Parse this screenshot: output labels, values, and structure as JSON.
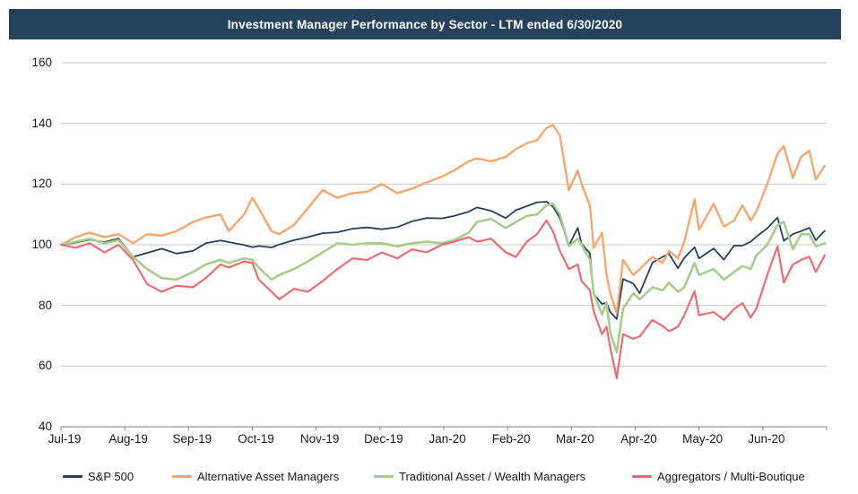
{
  "title": "Investment Manager Performance by Sector - LTM ended 6/30/2020",
  "colors": {
    "header_bg": "#24425C",
    "grid": "#C9C9C9",
    "axis": "#808080",
    "text": "#1A1A1A",
    "background": "#FFFFFF"
  },
  "legend": [
    {
      "label": "S&P 500",
      "color": "#24425C"
    },
    {
      "label": "Alternative Asset Managers",
      "color": "#F9A369"
    },
    {
      "label": "Traditional Asset / Wealth Managers",
      "color": "#A6CE8B"
    },
    {
      "label": "Aggregators / Multi-Boutique",
      "color": "#F3656D"
    }
  ],
  "chart_data": {
    "type": "line",
    "title": "Investment Manager Performance by Sector - LTM ended 6/30/2020",
    "xlabel": "",
    "ylabel": "",
    "ylim": [
      40,
      160
    ],
    "y_ticks": [
      160,
      140,
      120,
      100,
      80,
      60,
      40
    ],
    "x_labels": [
      "Jul-19",
      "Aug-19",
      "Sep-19",
      "Oct-19",
      "Nov-19",
      "Dec-19",
      "Jan-20",
      "Feb-20",
      "Mar-20",
      "Apr-20",
      "May-20",
      "Jun-20"
    ],
    "x_unit": "months since Jul-2019 (0 = 7/1/2019, 12 = 6/30/2020)",
    "x_range_months": [
      0,
      12
    ],
    "grid": "horizontal",
    "legend_position": "bottom",
    "x": [
      0,
      0.23,
      0.45,
      0.68,
      0.9,
      1.13,
      1.35,
      1.58,
      1.81,
      2.07,
      2.27,
      2.5,
      2.63,
      2.87,
      3.0,
      3.1,
      3.3,
      3.42,
      3.65,
      3.87,
      4.1,
      4.33,
      4.57,
      4.8,
      5.03,
      5.27,
      5.5,
      5.73,
      5.97,
      6.16,
      6.39,
      6.52,
      6.74,
      6.97,
      7.13,
      7.3,
      7.46,
      7.61,
      7.71,
      7.82,
      7.96,
      8.1,
      8.16,
      8.29,
      8.35,
      8.48,
      8.55,
      8.61,
      8.71,
      8.81,
      8.97,
      9.07,
      9.27,
      9.43,
      9.53,
      9.67,
      9.77,
      9.93,
      10.0,
      10.23,
      10.39,
      10.55,
      10.68,
      10.81,
      10.9,
      11.07,
      11.23,
      11.33,
      11.47,
      11.6,
      11.73,
      11.83,
      11.97
    ],
    "series": [
      {
        "name": "S&P 500",
        "color": "#24425C",
        "values": [
          100,
          100.7,
          101.7,
          100.9,
          102,
          96,
          97.3,
          98.7,
          97.1,
          98,
          100.5,
          101.4,
          100.9,
          99.9,
          99.2,
          99.6,
          99.1,
          100.1,
          101.5,
          102.5,
          103.8,
          104.1,
          105.3,
          105.7,
          105.1,
          105.8,
          107.7,
          108.8,
          108.7,
          109.5,
          110.9,
          112.3,
          111.2,
          108.8,
          111.4,
          112.7,
          114,
          114.2,
          112.6,
          108.8,
          99.7,
          105.6,
          100.3,
          97.2,
          83.7,
          80.5,
          80.9,
          77.8,
          75.5,
          88.7,
          87.2,
          84,
          94.1,
          96,
          97,
          92.3,
          95.7,
          99.2,
          95.5,
          98.8,
          95.1,
          99.7,
          99.7,
          101,
          102.7,
          105.4,
          109,
          101.3,
          103.5,
          104.5,
          105.6,
          101.5,
          104.6
        ]
      },
      {
        "name": "Alternative Asset Managers",
        "color": "#F9A369",
        "values": [
          100,
          102.5,
          104,
          102.5,
          103.5,
          100.5,
          103.5,
          103,
          104.5,
          107.5,
          109,
          110,
          104.5,
          110,
          115.5,
          112,
          104.5,
          103.5,
          106.5,
          112,
          118,
          115.5,
          117,
          117.5,
          120,
          117,
          118.5,
          120.5,
          122.5,
          124.5,
          127.5,
          128.5,
          127.5,
          129,
          131.5,
          133.5,
          134.5,
          138.5,
          139.5,
          136,
          118,
          124.5,
          120,
          113,
          99,
          104,
          90,
          84,
          77.5,
          95,
          90,
          92,
          96,
          94,
          98,
          95.5,
          101,
          115,
          105,
          113.5,
          106,
          108,
          113,
          108,
          111,
          120,
          130,
          132.5,
          122,
          129,
          131,
          121.5,
          126
        ]
      },
      {
        "name": "Traditional Asset / Wealth Managers",
        "color": "#A6CE8B",
        "values": [
          100,
          101,
          102,
          100.5,
          101.5,
          96,
          92,
          89,
          88.5,
          91,
          93.5,
          95,
          94,
          95.5,
          95,
          92.5,
          88.5,
          90,
          92,
          94.5,
          97.5,
          100.5,
          100,
          100.5,
          100.5,
          99.5,
          100.5,
          101,
          100.5,
          101.5,
          104,
          107.5,
          108.5,
          105.5,
          107.5,
          109.5,
          110,
          113,
          113.5,
          110,
          99.5,
          102,
          100,
          95,
          84,
          77,
          81,
          71,
          64.5,
          79,
          84,
          82,
          86,
          85,
          87.5,
          84.5,
          86,
          94,
          90,
          92,
          88.5,
          91,
          93,
          92,
          96.5,
          100,
          106.5,
          107.5,
          98.5,
          103.5,
          103.5,
          99.5,
          100.5
        ]
      },
      {
        "name": "Aggregators / Multi-Boutique",
        "color": "#F3656D",
        "values": [
          100,
          99,
          100.5,
          97.5,
          100,
          95,
          87,
          84.5,
          86.5,
          86,
          89,
          93.5,
          92.5,
          94.5,
          94,
          88.5,
          84.5,
          82,
          85.5,
          84.5,
          88,
          92,
          95.5,
          95,
          97.5,
          95.5,
          98.5,
          97.5,
          100,
          101,
          102.5,
          101,
          102,
          97.5,
          96,
          101,
          103.5,
          108,
          104.5,
          98,
          92,
          93.5,
          88,
          85,
          78,
          70.5,
          73,
          66,
          56,
          70.5,
          69,
          69.8,
          75.2,
          73.2,
          71.5,
          73,
          76.8,
          84.7,
          76.8,
          77.8,
          75.2,
          78.8,
          80.8,
          76,
          79,
          90,
          99.5,
          87.5,
          93.5,
          95,
          96,
          91,
          96.5
        ]
      }
    ]
  }
}
